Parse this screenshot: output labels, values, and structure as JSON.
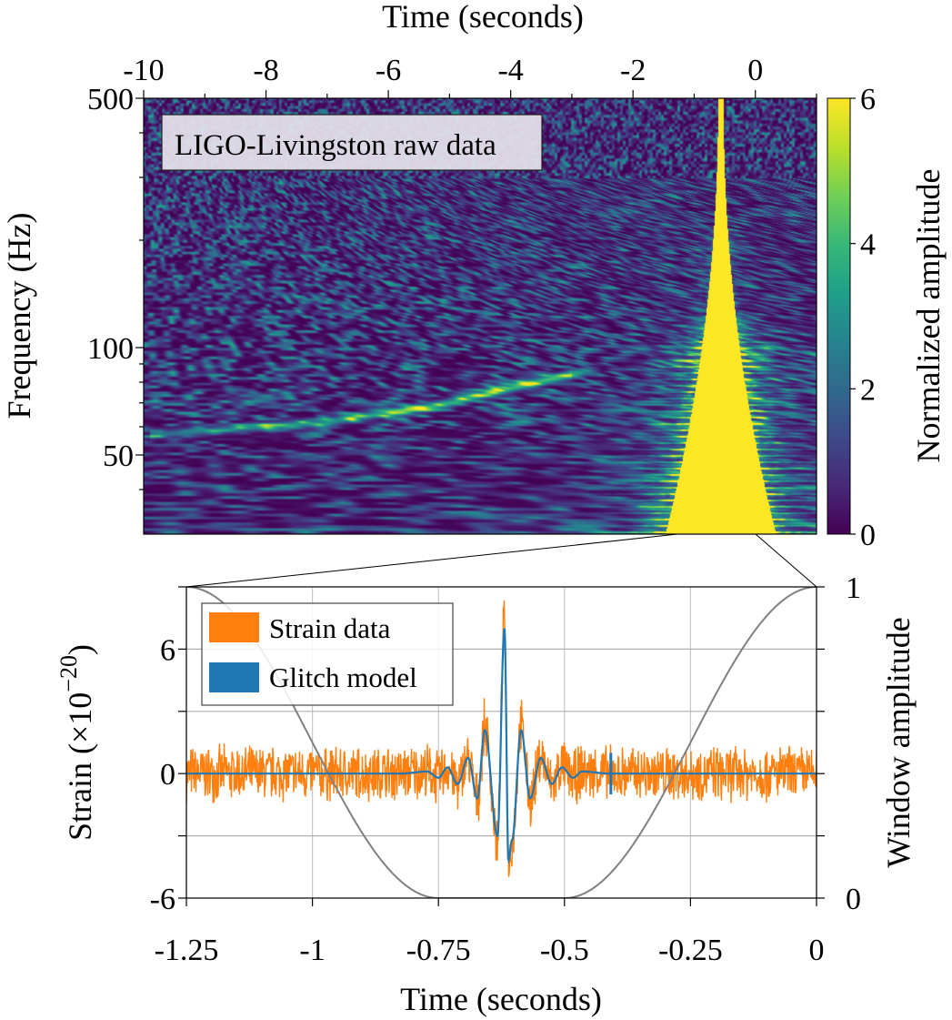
{
  "chart_data": [
    {
      "type": "heatmap",
      "title": "",
      "annotation": "LIGO-Livingston raw data",
      "xlabel": "Time (seconds)",
      "ylabel": "Frequency (Hz)",
      "xlim": [
        -10,
        1
      ],
      "ylim": [
        30,
        500
      ],
      "yscale": "log",
      "x_ticks": [
        "-10",
        "-8",
        "-6",
        "-4",
        "-2",
        "0"
      ],
      "x_tick_values": [
        -10,
        -8,
        -6,
        -4,
        -2,
        0
      ],
      "y_ticks": [
        "500",
        "100",
        "50"
      ],
      "y_tick_values": [
        500,
        100,
        50
      ],
      "colorbar": {
        "label": "Normalized amplitude",
        "range": [
          0,
          6
        ],
        "ticks": [
          "0",
          "2",
          "4",
          "6"
        ],
        "tick_values": [
          0,
          2,
          4,
          6
        ],
        "colormap": "viridis"
      },
      "features": {
        "chirp_track": {
          "t": [
            -9.9,
            -7,
            -5,
            -3.6,
            -2.5
          ],
          "f": [
            57,
            62,
            70,
            80,
            88
          ]
        },
        "glitch": {
          "t_center": -0.6,
          "f_range": [
            30,
            500
          ]
        }
      },
      "zoom_region": [
        -1.25,
        0
      ]
    },
    {
      "type": "line",
      "title": "",
      "xlabel": "Time (seconds)",
      "ylabel": "Strain (×10",
      "ylabel_exp": "−20",
      "ylabel_tail": ")",
      "y2label": "Window amplitude",
      "xlim": [
        -1.25,
        0
      ],
      "ylim": [
        -6,
        9
      ],
      "y2lim": [
        0,
        1
      ],
      "grid": true,
      "legend_position": "top-left",
      "x_ticks": [
        "-1.25",
        "-1",
        "-0.75",
        "-0.5",
        "-0.25",
        "0"
      ],
      "x_tick_values": [
        -1.25,
        -1,
        -0.75,
        -0.5,
        -0.25,
        0
      ],
      "y_ticks": [
        "6",
        "0",
        "-6"
      ],
      "y_tick_values": [
        6,
        0,
        -6
      ],
      "y2_ticks": [
        "1",
        "0"
      ],
      "y2_tick_values": [
        1,
        0
      ],
      "colors": {
        "strain": "#ff7f0e",
        "glitch": "#1f77b4",
        "window": "#808080"
      },
      "series": [
        {
          "name": "Strain data",
          "noise_amplitude": 1.5
        },
        {
          "name": "Glitch model",
          "x": [
            -1.25,
            -0.826,
            -0.772,
            -0.75,
            -0.732,
            -0.712,
            -0.691,
            -0.673,
            -0.658,
            -0.633,
            -0.619,
            -0.611,
            -0.604,
            -0.586,
            -0.568,
            -0.547,
            -0.525,
            -0.505,
            -0.483,
            -0.465,
            -0.408,
            0
          ],
          "y": [
            0,
            0,
            0.1,
            -0.2,
            0.3,
            -0.5,
            0.75,
            -1.2,
            2.1,
            -3.0,
            7.0,
            -4.2,
            -3.2,
            2.1,
            -1.2,
            0.75,
            -0.5,
            0.3,
            -0.2,
            0.1,
            0,
            0
          ]
        },
        {
          "name": "Window",
          "axis": "right",
          "type": "tukey",
          "x": [
            -1.25,
            -0.75,
            -0.5,
            0
          ],
          "y": [
            1,
            0,
            0,
            1
          ]
        }
      ]
    }
  ]
}
